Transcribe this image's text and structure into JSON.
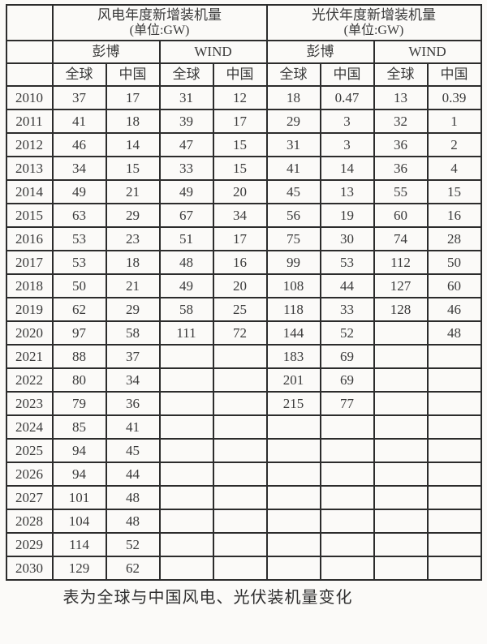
{
  "caption": "表为全球与中国风电、光伏装机量变化",
  "colors": {
    "border": "#2c2c2c",
    "text": "#3a3a3a",
    "background": "#fbfaf8"
  },
  "chart_data": {
    "type": "table",
    "groups": [
      {
        "title": "风电年度新增装机量",
        "unit": "(单位:GW)"
      },
      {
        "title": "光伏年度新增装机量",
        "unit": "(单位:GW)"
      }
    ],
    "sources": [
      "彭博",
      "WIND",
      "彭博",
      "WIND"
    ],
    "regions": [
      "全球",
      "中国",
      "全球",
      "中国",
      "全球",
      "中国",
      "全球",
      "中国"
    ],
    "rows": [
      {
        "year": "2010",
        "values": [
          "37",
          "17",
          "31",
          "12",
          "18",
          "0.47",
          "13",
          "0.39"
        ]
      },
      {
        "year": "2011",
        "values": [
          "41",
          "18",
          "39",
          "17",
          "29",
          "3",
          "32",
          "1"
        ]
      },
      {
        "year": "2012",
        "values": [
          "46",
          "14",
          "47",
          "15",
          "31",
          "3",
          "36",
          "2"
        ]
      },
      {
        "year": "2013",
        "values": [
          "34",
          "15",
          "33",
          "15",
          "41",
          "14",
          "36",
          "4"
        ]
      },
      {
        "year": "2014",
        "values": [
          "49",
          "21",
          "49",
          "20",
          "45",
          "13",
          "55",
          "15"
        ]
      },
      {
        "year": "2015",
        "values": [
          "63",
          "29",
          "67",
          "34",
          "56",
          "19",
          "60",
          "16"
        ]
      },
      {
        "year": "2016",
        "values": [
          "53",
          "23",
          "51",
          "17",
          "75",
          "30",
          "74",
          "28"
        ]
      },
      {
        "year": "2017",
        "values": [
          "53",
          "18",
          "48",
          "16",
          "99",
          "53",
          "112",
          "50"
        ]
      },
      {
        "year": "2018",
        "values": [
          "50",
          "21",
          "49",
          "20",
          "108",
          "44",
          "127",
          "60"
        ]
      },
      {
        "year": "2019",
        "values": [
          "62",
          "29",
          "58",
          "25",
          "118",
          "33",
          "128",
          "46"
        ]
      },
      {
        "year": "2020",
        "values": [
          "97",
          "58",
          "111",
          "72",
          "144",
          "52",
          "",
          "48"
        ]
      },
      {
        "year": "2021",
        "values": [
          "88",
          "37",
          "",
          "",
          "183",
          "69",
          "",
          ""
        ]
      },
      {
        "year": "2022",
        "values": [
          "80",
          "34",
          "",
          "",
          "201",
          "69",
          "",
          ""
        ]
      },
      {
        "year": "2023",
        "values": [
          "79",
          "36",
          "",
          "",
          "215",
          "77",
          "",
          ""
        ]
      },
      {
        "year": "2024",
        "values": [
          "85",
          "41",
          "",
          "",
          "",
          "",
          "",
          ""
        ]
      },
      {
        "year": "2025",
        "values": [
          "94",
          "45",
          "",
          "",
          "",
          "",
          "",
          ""
        ]
      },
      {
        "year": "2026",
        "values": [
          "94",
          "44",
          "",
          "",
          "",
          "",
          "",
          ""
        ]
      },
      {
        "year": "2027",
        "values": [
          "101",
          "48",
          "",
          "",
          "",
          "",
          "",
          ""
        ]
      },
      {
        "year": "2028",
        "values": [
          "104",
          "48",
          "",
          "",
          "",
          "",
          "",
          ""
        ]
      },
      {
        "year": "2029",
        "values": [
          "114",
          "52",
          "",
          "",
          "",
          "",
          "",
          ""
        ]
      },
      {
        "year": "2030",
        "values": [
          "129",
          "62",
          "",
          "",
          "",
          "",
          "",
          ""
        ]
      }
    ]
  }
}
